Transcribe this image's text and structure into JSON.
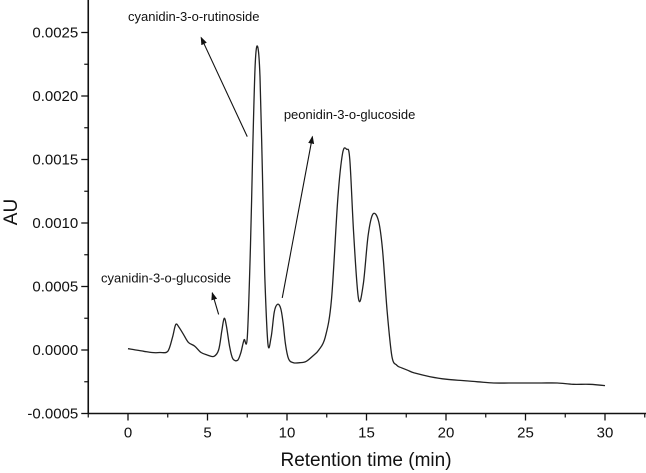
{
  "chart_data": {
    "type": "line",
    "title": "",
    "xlabel": "Retention time (min)",
    "ylabel": "AU",
    "xlim": [
      -2.5,
      32.5
    ],
    "ylim": [
      -0.0005,
      0.0027
    ],
    "xticks": [
      0,
      5,
      10,
      15,
      20,
      25,
      30
    ],
    "xtick_labels": [
      "0",
      "5",
      "10",
      "15",
      "20",
      "25",
      "30"
    ],
    "yticks": [
      -0.0005,
      0.0,
      0.0005,
      0.001,
      0.0015,
      0.002,
      0.0025
    ],
    "ytick_labels": [
      "-0.0005",
      "0.0000",
      "0.0005",
      "0.0010",
      "0.0015",
      "0.0020",
      "0.0025"
    ],
    "grid": false,
    "legend": null,
    "series": [
      {
        "name": "chromatogram",
        "color": "#222222",
        "x": [
          0.0,
          0.5,
          1.0,
          1.5,
          2.0,
          2.5,
          2.8,
          3.0,
          3.2,
          3.5,
          3.8,
          4.2,
          4.6,
          5.0,
          5.4,
          5.7,
          5.9,
          6.05,
          6.2,
          6.4,
          6.6,
          6.9,
          7.1,
          7.3,
          7.5,
          7.7,
          7.85,
          8.0,
          8.15,
          8.3,
          8.45,
          8.6,
          8.8,
          9.0,
          9.2,
          9.4,
          9.6,
          9.75,
          9.9,
          10.1,
          10.4,
          10.8,
          11.2,
          11.6,
          12.0,
          12.4,
          12.8,
          13.2,
          13.5,
          13.75,
          13.95,
          14.2,
          14.5,
          14.8,
          15.1,
          15.4,
          15.75,
          16.0,
          16.3,
          16.6,
          16.9,
          17.2,
          17.6,
          18.0,
          19.0,
          20.0,
          21.0,
          22.0,
          23.0,
          24.0,
          25.0,
          26.0,
          27.0,
          28.0,
          29.0,
          30.0
        ],
        "y": [
          1e-05,
          0.0,
          -1e-05,
          -2e-05,
          -2e-05,
          -1e-05,
          0.0001,
          0.0002,
          0.00018,
          0.00012,
          6e-05,
          3e-05,
          -2e-05,
          -4e-05,
          -5e-05,
          0.0,
          0.00015,
          0.00025,
          0.00018,
          2e-05,
          -7e-05,
          -8e-05,
          -2e-05,
          8e-05,
          0.0001,
          0.0008,
          0.0016,
          0.00225,
          0.00239,
          0.00215,
          0.0014,
          0.0006,
          5e-05,
          0.0001,
          0.0003,
          0.00036,
          0.00033,
          0.00022,
          5e-05,
          -7e-05,
          -0.0001,
          -0.0001,
          -9e-05,
          -5e-05,
          0.0,
          0.0001,
          0.0004,
          0.0012,
          0.00155,
          0.00158,
          0.0015,
          0.0009,
          0.0004,
          0.00052,
          0.0009,
          0.00107,
          0.00102,
          0.0008,
          0.0003,
          -5e-05,
          -0.00012,
          -0.00014,
          -0.00016,
          -0.00018,
          -0.00021,
          -0.00023,
          -0.00024,
          -0.00025,
          -0.00026,
          -0.00026,
          -0.00026,
          -0.00026,
          -0.00026,
          -0.00027,
          -0.00027,
          -0.00028
        ]
      }
    ],
    "annotations": [
      {
        "text": "cyanidin-3-o-rutinoside",
        "arrow_from": [
          7.5,
          0.00168
        ],
        "arrow_to": [
          4.6,
          0.00246
        ],
        "label_at": [
          0.0,
          0.00259
        ]
      },
      {
        "text": "peonidin-3-o-glucoside",
        "arrow_from": [
          9.7,
          0.00041
        ],
        "arrow_to": [
          11.6,
          0.00168
        ],
        "label_at": [
          9.8,
          0.00182
        ]
      },
      {
        "text": "cyanidin-3-o-glucoside",
        "arrow_from": [
          5.7,
          0.00028
        ],
        "arrow_to": [
          5.3,
          0.00045
        ],
        "label_at": [
          -1.7,
          0.00053
        ]
      }
    ]
  }
}
